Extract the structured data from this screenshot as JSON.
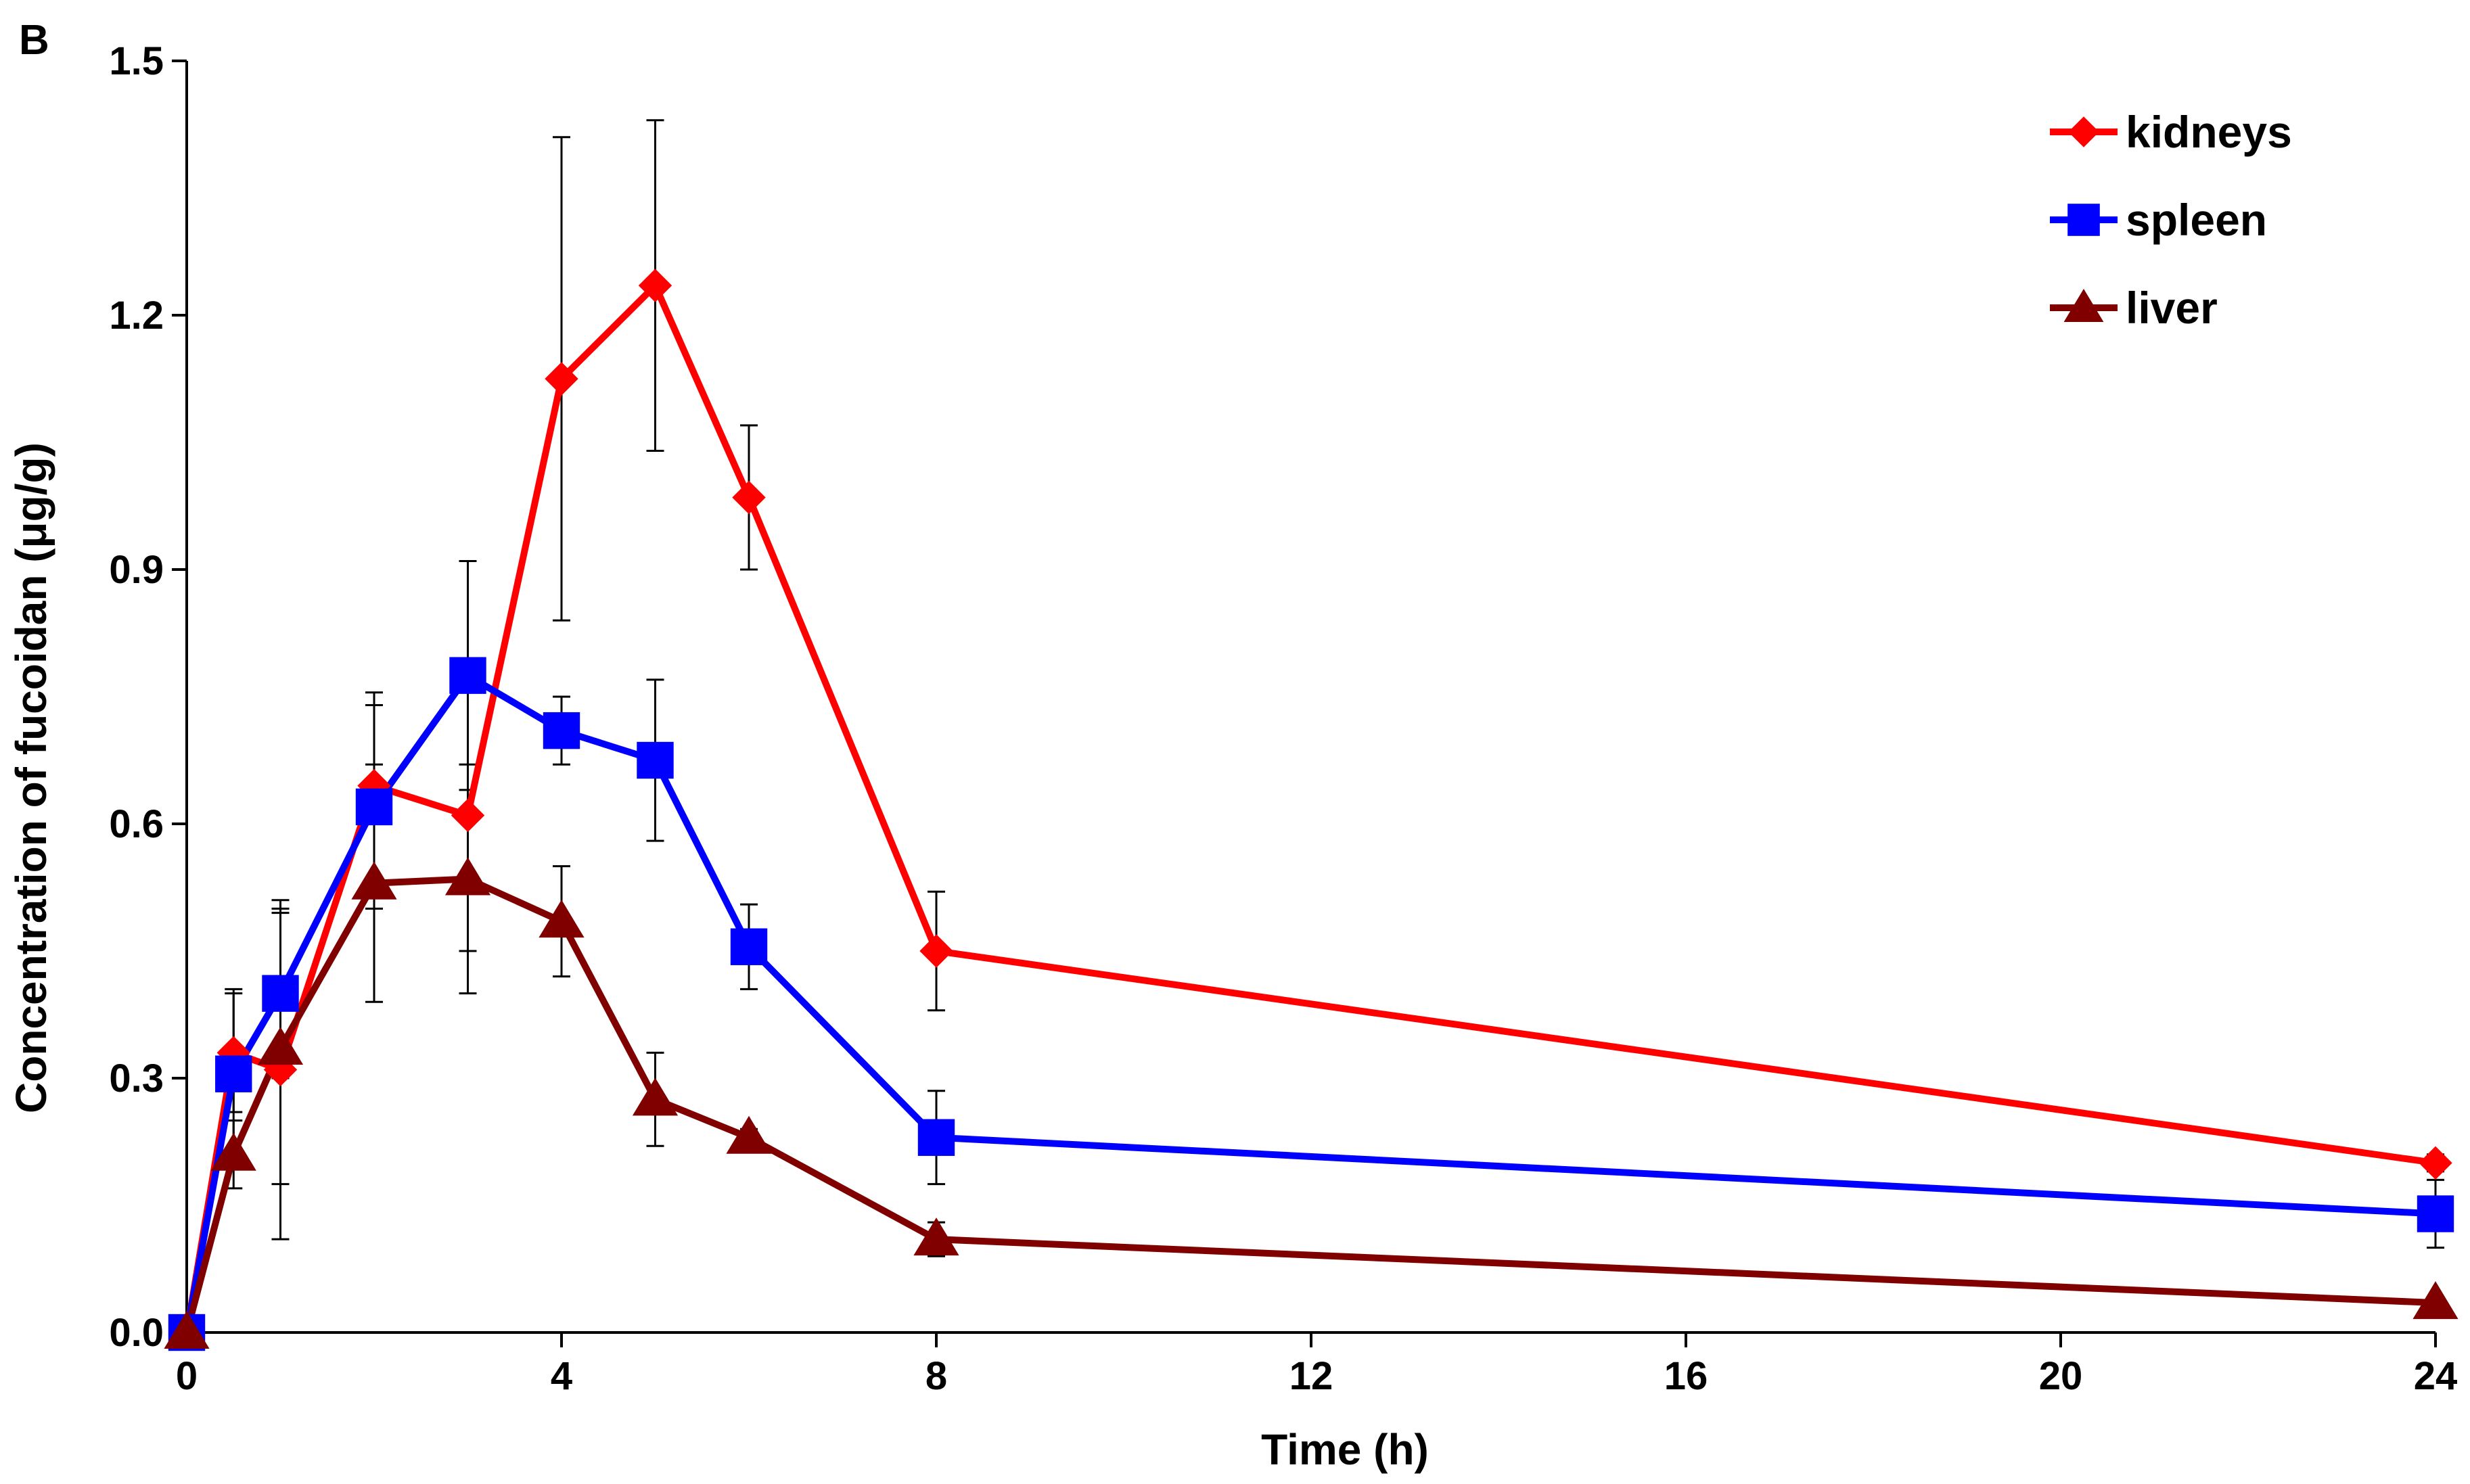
{
  "chart_data": {
    "type": "line",
    "panel_label": "B",
    "title": "",
    "xlabel": "Time (h)",
    "ylabel": "Concentration of fucoidan (μg/g)",
    "xlim": [
      0,
      24
    ],
    "ylim": [
      0,
      1.5
    ],
    "xticks": [
      0,
      4,
      8,
      12,
      16,
      20,
      24
    ],
    "yticks": [
      0.0,
      0.3,
      0.6,
      0.9,
      1.2,
      1.5
    ],
    "ytick_labels": [
      "0.0",
      "0.3",
      "0.6",
      "0.9",
      "1.2",
      "1.5"
    ],
    "grid": false,
    "legend_position": "top-right",
    "x": [
      0,
      0.5,
      1,
      2,
      3,
      4,
      5,
      6,
      8,
      24
    ],
    "series": [
      {
        "name": "kidneys",
        "color": "#ff0000",
        "marker": "diamond",
        "values": [
          0.0,
          0.33,
          0.31,
          0.645,
          0.61,
          1.125,
          1.235,
          0.985,
          0.45,
          0.2
        ],
        "errors": [
          0.0,
          0.07,
          0.2,
          0.11,
          0.16,
          0.285,
          0.195,
          0.085,
          0.07,
          0.01
        ]
      },
      {
        "name": "spleen",
        "color": "#0000ff",
        "marker": "square",
        "values": [
          0.0,
          0.305,
          0.4,
          0.62,
          0.775,
          0.71,
          0.675,
          0.455,
          0.23,
          0.14
        ],
        "errors": [
          0.0,
          0.1,
          0.1,
          0.12,
          0.135,
          0.04,
          0.095,
          0.05,
          0.055,
          0.04
        ]
      },
      {
        "name": "liver",
        "color": "#800000",
        "marker": "triangle",
        "values": [
          0.0,
          0.21,
          0.335,
          0.53,
          0.535,
          0.485,
          0.275,
          0.23,
          0.11,
          0.035
        ],
        "errors": [
          0.0,
          0.04,
          0.16,
          0.14,
          0.135,
          0.065,
          0.055,
          0.01,
          0.02,
          0.005
        ]
      }
    ]
  }
}
